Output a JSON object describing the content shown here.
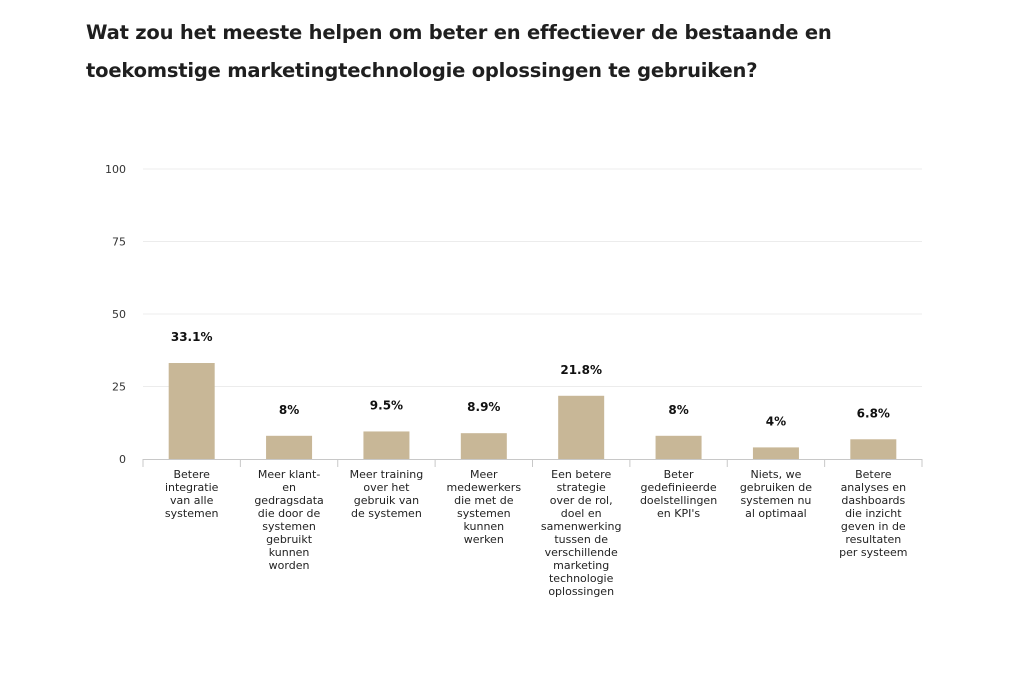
{
  "title": "Wat zou het meeste helpen om beter en effectiever de bestaande en toekomstige marketingtechnologie oplossingen te gebruiken?",
  "chart_data": {
    "type": "bar",
    "title": "Wat zou het meeste helpen om beter en effectiever de bestaande en toekomstige marketingtechnologie oplossingen te gebruiken?",
    "xlabel": "",
    "ylabel": "",
    "ylim": [
      0,
      100
    ],
    "yticks": [
      0,
      25,
      50,
      75,
      100
    ],
    "grid": true,
    "bar_color": "#c8b797",
    "categories": [
      [
        "Betere",
        "integratie",
        "van alle",
        "systemen"
      ],
      [
        "Meer klant-",
        "en",
        "gedragsdata",
        "die door de",
        "systemen",
        "gebruikt",
        "kunnen",
        "worden"
      ],
      [
        "Meer training",
        "over het",
        "gebruik van",
        "de systemen"
      ],
      [
        "Meer",
        "medewerkers",
        "die met de",
        "systemen",
        "kunnen",
        "werken"
      ],
      [
        "Een betere",
        "strategie",
        "over de rol,",
        "doel en",
        "samenwerking",
        "tussen de",
        "verschillende",
        "marketing",
        "technologie",
        "oplossingen"
      ],
      [
        "Beter",
        "gedefinieerde",
        "doelstellingen",
        "en KPI's"
      ],
      [
        "Niets, we",
        "gebruiken de",
        "systemen nu",
        "al optimaal"
      ],
      [
        "Betere",
        "analyses en",
        "dashboards",
        "die inzicht",
        "geven in de",
        "resultaten",
        "per systeem"
      ]
    ],
    "values": [
      33.1,
      8,
      9.5,
      8.9,
      21.8,
      8,
      4,
      6.8
    ],
    "value_labels": [
      "33.1%",
      "8%",
      "9.5%",
      "8.9%",
      "21.8%",
      "8%",
      "4%",
      "6.8%"
    ]
  }
}
